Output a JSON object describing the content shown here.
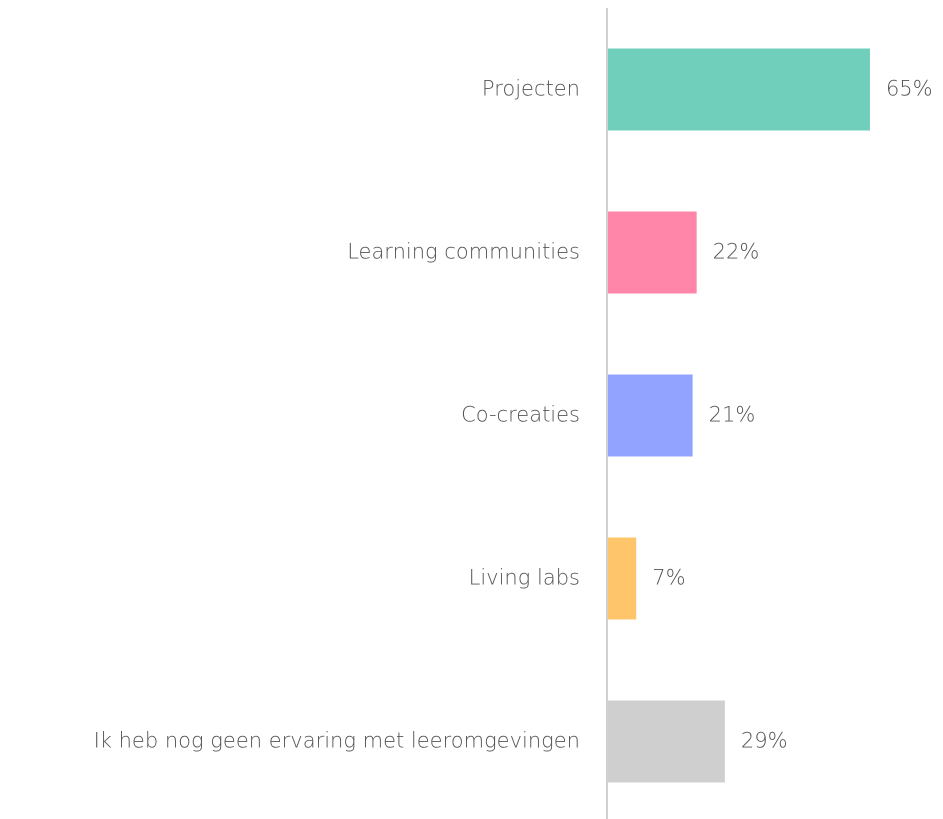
{
  "chart_data": {
    "type": "hbar",
    "categories": [
      "Projecten",
      "Learning communities",
      "Co-creaties",
      "Living labs",
      "Ik heb nog geen ervaring met leeromgevingen"
    ],
    "values": [
      65,
      22,
      21,
      7,
      29
    ],
    "value_labels": [
      "65%",
      "22%",
      "21%",
      "7%",
      "29%"
    ],
    "colors": [
      "#6fcfbb",
      "#ff85a9",
      "#91a3ff",
      "#ffc56b",
      "#cfcfcf"
    ],
    "xlim": [
      0,
      100
    ]
  }
}
